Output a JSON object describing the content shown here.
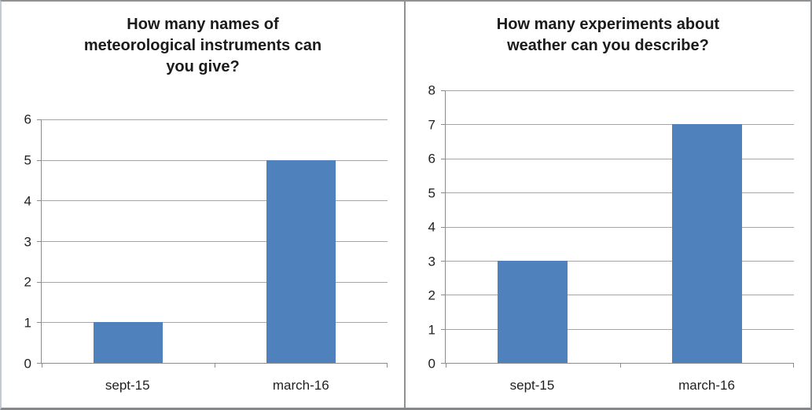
{
  "page": {
    "background": "#ffffff",
    "frame_border_color": "#8f9193"
  },
  "chart_data": [
    {
      "type": "bar",
      "title": "How many names of meteorological instruments can you give?",
      "categories": [
        "sept-15",
        "march-16"
      ],
      "values": [
        1,
        5
      ],
      "xlabel": "",
      "ylabel": "",
      "ylim": [
        0,
        6
      ],
      "ytick_step": 1,
      "grid": true,
      "legend": "none",
      "bar_color": "#4F81BD",
      "gridline_color": "#a6a6a6",
      "axis_color": "#8c8c8c"
    },
    {
      "type": "bar",
      "title": "How many experiments about weather can you describe?",
      "categories": [
        "sept-15",
        "march-16"
      ],
      "values": [
        3,
        7
      ],
      "xlabel": "",
      "ylabel": "",
      "ylim": [
        0,
        8
      ],
      "ytick_step": 1,
      "grid": true,
      "legend": "none",
      "bar_color": "#4F81BD",
      "gridline_color": "#a6a6a6",
      "axis_color": "#8c8c8c"
    }
  ]
}
